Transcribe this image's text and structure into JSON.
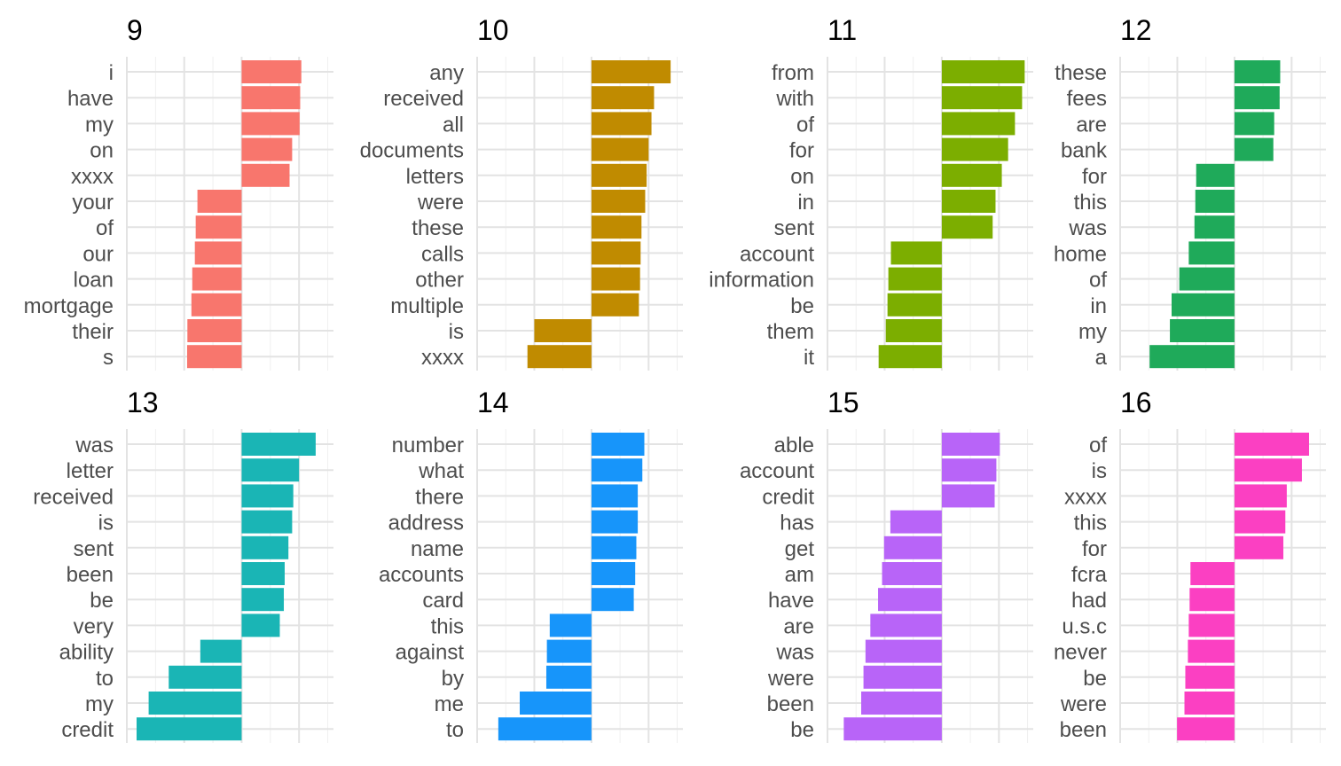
{
  "chart_data": [
    {
      "type": "bar",
      "title": "9",
      "color": "#F8766D",
      "categories": [
        "i",
        "have",
        "my",
        "on",
        "xxxx",
        "your",
        "of",
        "our",
        "loan",
        "mortgage",
        "their",
        "s"
      ],
      "values": [
        0.0208,
        0.0204,
        0.0202,
        0.0176,
        0.0167,
        -0.0154,
        -0.016,
        -0.0163,
        -0.0172,
        -0.0175,
        -0.0189,
        -0.019
      ],
      "xlim": [
        -0.04,
        0.032
      ],
      "grid": true
    },
    {
      "type": "bar",
      "title": "10",
      "color": "#C08B00",
      "categories": [
        "any",
        "received",
        "all",
        "documents",
        "letters",
        "were",
        "these",
        "calls",
        "other",
        "multiple",
        "is",
        "xxxx"
      ],
      "values": [
        0.0277,
        0.0219,
        0.021,
        0.02,
        0.0193,
        0.0188,
        0.0175,
        0.0172,
        0.017,
        0.0166,
        -0.02,
        -0.0224
      ],
      "xlim": [
        -0.04,
        0.032
      ],
      "grid": true
    },
    {
      "type": "bar",
      "title": "11",
      "color": "#7CAE00",
      "categories": [
        "from",
        "with",
        "of",
        "for",
        "on",
        "in",
        "sent",
        "account",
        "information",
        "be",
        "them",
        "it"
      ],
      "values": [
        0.029,
        0.0281,
        0.0256,
        0.0232,
        0.021,
        0.0188,
        0.0178,
        -0.0178,
        -0.0187,
        -0.019,
        -0.0196,
        -0.0221
      ],
      "xlim": [
        -0.04,
        0.032
      ],
      "grid": true
    },
    {
      "type": "bar",
      "title": "12",
      "color": "#1FAA5A",
      "categories": [
        "these",
        "fees",
        "are",
        "bank",
        "for",
        "this",
        "was",
        "home",
        "of",
        "in",
        "my",
        "a"
      ],
      "values": [
        0.016,
        0.0158,
        0.0139,
        0.0136,
        -0.0134,
        -0.0137,
        -0.014,
        -0.016,
        -0.0193,
        -0.022,
        -0.0226,
        -0.0297
      ],
      "xlim": [
        -0.04,
        0.032
      ],
      "grid": true
    },
    {
      "type": "bar",
      "title": "13",
      "color": "#1AB5B5",
      "categories": [
        "was",
        "letter",
        "received",
        "is",
        "sent",
        "been",
        "be",
        "very",
        "ability",
        "to",
        "my",
        "credit"
      ],
      "values": [
        0.0258,
        0.02,
        0.018,
        0.0176,
        0.0163,
        0.015,
        0.0147,
        0.0133,
        -0.0144,
        -0.0254,
        -0.0324,
        -0.0366
      ],
      "xlim": [
        -0.04,
        0.032
      ],
      "grid": true
    },
    {
      "type": "bar",
      "title": "14",
      "color": "#1795FA",
      "categories": [
        "number",
        "what",
        "there",
        "address",
        "name",
        "accounts",
        "card",
        "this",
        "against",
        "by",
        "me",
        "to"
      ],
      "values": [
        0.0185,
        0.0178,
        0.0162,
        0.0162,
        0.0157,
        0.0153,
        0.0148,
        -0.0146,
        -0.0156,
        -0.0158,
        -0.0251,
        -0.0326
      ],
      "xlim": [
        -0.04,
        0.032
      ],
      "grid": true
    },
    {
      "type": "bar",
      "title": "15",
      "color": "#B864F8",
      "categories": [
        "able",
        "account",
        "credit",
        "has",
        "get",
        "am",
        "have",
        "are",
        "was",
        "were",
        "been",
        "be"
      ],
      "values": [
        0.0203,
        0.0191,
        0.0185,
        -0.018,
        -0.0202,
        -0.0209,
        -0.0223,
        -0.025,
        -0.0267,
        -0.0274,
        -0.0282,
        -0.0343
      ],
      "xlim": [
        -0.04,
        0.032
      ],
      "grid": true
    },
    {
      "type": "bar",
      "title": "16",
      "color": "#FB40C2",
      "categories": [
        "of",
        "is",
        "xxxx",
        "this",
        "for",
        "fcra",
        "had",
        "u.s.c",
        "never",
        "be",
        "were",
        "been"
      ],
      "values": [
        0.0261,
        0.0236,
        0.0183,
        0.0178,
        0.0171,
        -0.0154,
        -0.0157,
        -0.016,
        -0.0163,
        -0.0172,
        -0.0175,
        -0.0201
      ],
      "xlim": [
        -0.04,
        0.032
      ],
      "grid": true
    }
  ]
}
